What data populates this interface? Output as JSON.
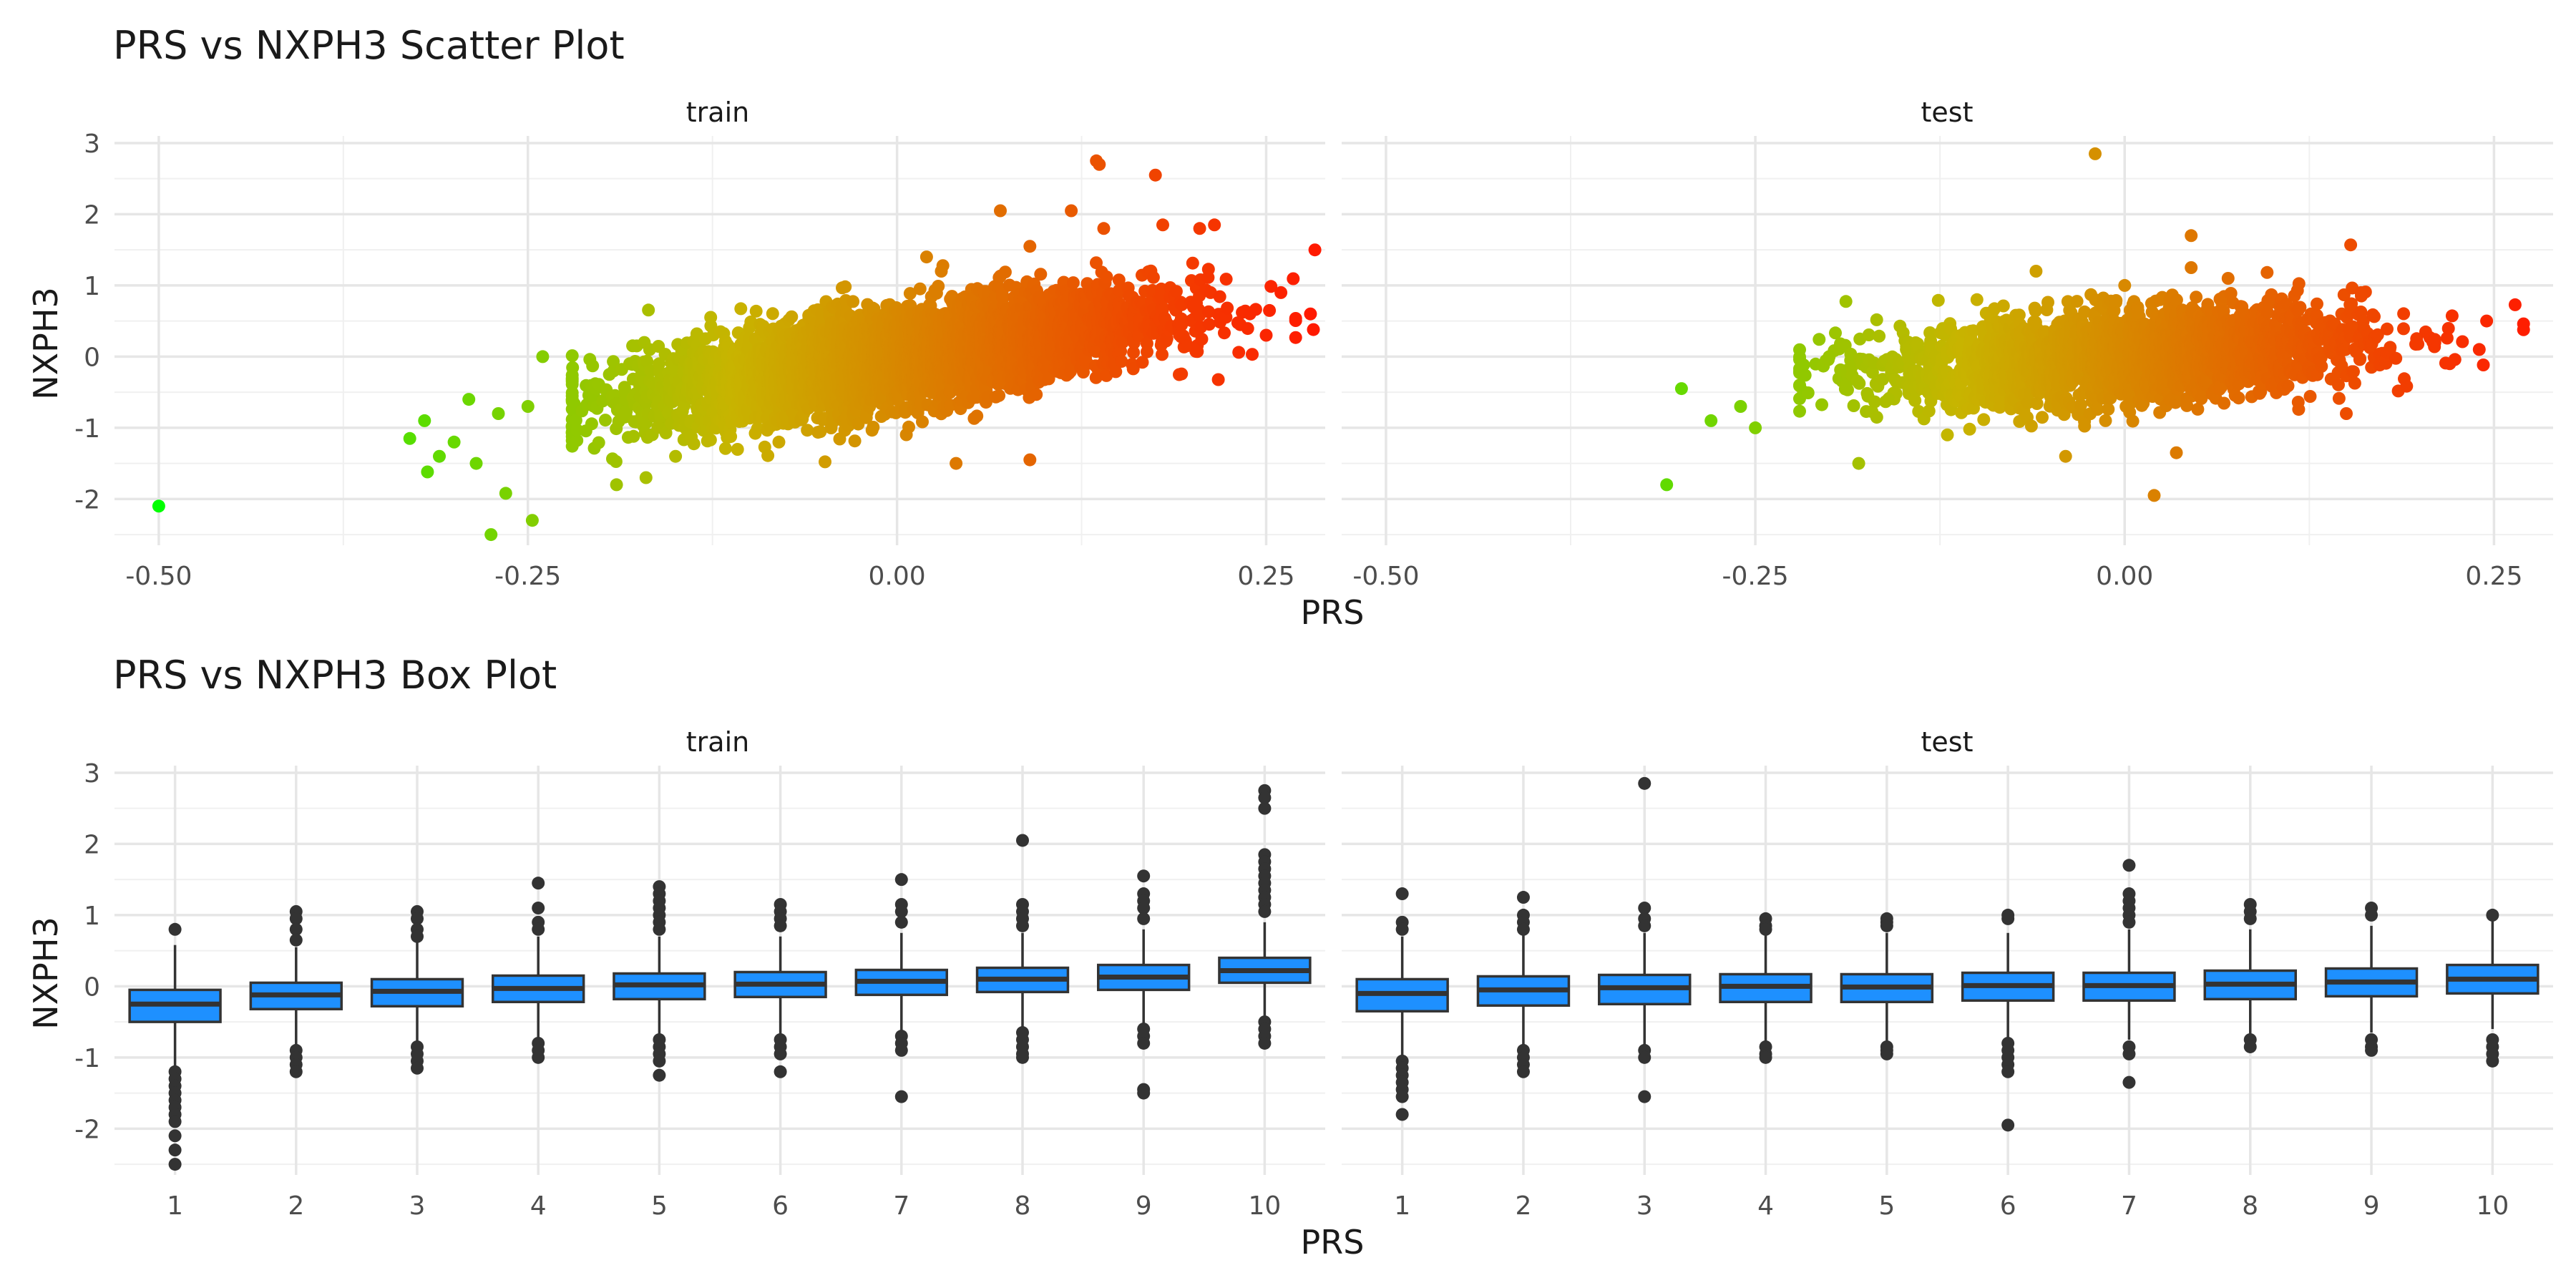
{
  "chart_data": [
    {
      "type": "scatter",
      "title": "PRS vs NXPH3 Scatter Plot",
      "xlabel": "PRS",
      "ylabel": "NXPH3",
      "xlim": [
        -0.53,
        0.29
      ],
      "ylim": [
        -2.65,
        3.1
      ],
      "xticks": [
        -0.5,
        -0.25,
        0,
        0.25
      ],
      "xtick_labels": [
        "-0.50",
        "-0.25",
        "0.00",
        "0.25"
      ],
      "yticks": [
        -2,
        -1,
        0,
        1,
        2,
        3
      ],
      "ytick_labels": [
        "-2",
        "-1",
        "0",
        "1",
        "2",
        "3"
      ],
      "grid": true,
      "legend": "none",
      "color_gradient": {
        "low": "#00ff00",
        "mid": "#c8b400",
        "high": "#ff1a00"
      },
      "facets": [
        {
          "name": "train",
          "trend": {
            "slope": 3.1,
            "intercept": 0.0,
            "sd": 0.33,
            "x_mean": 0.0,
            "x_sd": 0.085,
            "n": 4500
          },
          "points": [
            {
              "x": -0.5,
              "y": -2.1
            },
            {
              "x": -0.275,
              "y": -2.5
            },
            {
              "x": -0.265,
              "y": -1.92
            },
            {
              "x": -0.247,
              "y": -2.3
            },
            {
              "x": -0.33,
              "y": -1.15
            },
            {
              "x": -0.32,
              "y": -0.9
            },
            {
              "x": -0.318,
              "y": -1.62
            },
            {
              "x": -0.31,
              "y": -1.4
            },
            {
              "x": -0.3,
              "y": -1.2
            },
            {
              "x": -0.29,
              "y": -0.6
            },
            {
              "x": -0.285,
              "y": -1.5
            },
            {
              "x": -0.27,
              "y": -0.8
            },
            {
              "x": -0.25,
              "y": -0.7
            },
            {
              "x": -0.24,
              "y": 0.0
            },
            {
              "x": -0.19,
              "y": -1.8
            },
            {
              "x": -0.17,
              "y": -1.7
            },
            {
              "x": -0.15,
              "y": -1.4
            },
            {
              "x": -0.08,
              "y": -1.2
            },
            {
              "x": 0.02,
              "y": 1.4
            },
            {
              "x": 0.03,
              "y": 1.2
            },
            {
              "x": 0.04,
              "y": -1.5
            },
            {
              "x": 0.07,
              "y": 2.05
            },
            {
              "x": 0.09,
              "y": 1.55
            },
            {
              "x": 0.09,
              "y": -1.45
            },
            {
              "x": 0.118,
              "y": 2.05
            },
            {
              "x": 0.135,
              "y": 2.75
            },
            {
              "x": 0.137,
              "y": 2.7
            },
            {
              "x": 0.14,
              "y": 1.8
            },
            {
              "x": 0.175,
              "y": 2.55
            },
            {
              "x": 0.18,
              "y": 1.85
            },
            {
              "x": 0.205,
              "y": 1.8
            },
            {
              "x": 0.215,
              "y": 1.85
            },
            {
              "x": 0.283,
              "y": 1.5
            },
            {
              "x": 0.28,
              "y": 0.6
            },
            {
              "x": 0.282,
              "y": 0.38
            },
            {
              "x": 0.26,
              "y": 0.9
            },
            {
              "x": 0.25,
              "y": 0.3
            }
          ]
        },
        {
          "name": "test",
          "trend": {
            "slope": 1.3,
            "intercept": 0.0,
            "sd": 0.32,
            "x_mean": 0.0,
            "x_sd": 0.08,
            "n": 2500
          },
          "points": [
            {
              "x": -0.31,
              "y": -1.8
            },
            {
              "x": -0.3,
              "y": -0.45
            },
            {
              "x": -0.28,
              "y": -0.9
            },
            {
              "x": -0.26,
              "y": -0.7
            },
            {
              "x": -0.25,
              "y": -1.0
            },
            {
              "x": -0.22,
              "y": -0.4
            },
            {
              "x": -0.2,
              "y": 0.0
            },
            {
              "x": -0.18,
              "y": -1.5
            },
            {
              "x": -0.16,
              "y": -0.6
            },
            {
              "x": -0.12,
              "y": -1.1
            },
            {
              "x": -0.1,
              "y": 0.8
            },
            {
              "x": -0.06,
              "y": 1.2
            },
            {
              "x": -0.04,
              "y": -1.4
            },
            {
              "x": -0.02,
              "y": 2.85
            },
            {
              "x": 0.0,
              "y": 1.0
            },
            {
              "x": 0.02,
              "y": -1.95
            },
            {
              "x": 0.035,
              "y": -1.35
            },
            {
              "x": 0.045,
              "y": 1.7
            },
            {
              "x": 0.045,
              "y": 1.25
            },
            {
              "x": 0.07,
              "y": 1.1
            },
            {
              "x": 0.15,
              "y": -0.8
            },
            {
              "x": 0.16,
              "y": 0.9
            },
            {
              "x": 0.21,
              "y": 0.2
            },
            {
              "x": 0.22,
              "y": -0.1
            },
            {
              "x": 0.245,
              "y": 0.5
            },
            {
              "x": 0.24,
              "y": 0.1
            }
          ]
        }
      ]
    },
    {
      "type": "box",
      "title": "PRS vs NXPH3 Box Plot",
      "xlabel": "PRS",
      "ylabel": "NXPH3",
      "categories": [
        "1",
        "2",
        "3",
        "4",
        "5",
        "6",
        "7",
        "8",
        "9",
        "10"
      ],
      "ylim": [
        -2.65,
        3.1
      ],
      "yticks": [
        -2,
        -1,
        0,
        1,
        2,
        3
      ],
      "ytick_labels": [
        "-2",
        "-1",
        "0",
        "1",
        "2",
        "3"
      ],
      "grid": true,
      "legend": "none",
      "box_fill": "#1e90ff",
      "facets": [
        {
          "name": "train",
          "boxes": [
            {
              "q1": -0.5,
              "median": -0.25,
              "q3": -0.05,
              "whisker_low": -1.15,
              "whisker_high": 0.58,
              "outliers": [
                0.8,
                -1.2,
                -1.3,
                -1.4,
                -1.5,
                -1.6,
                -1.7,
                -1.8,
                -1.9,
                -2.1,
                -2.3,
                -2.5
              ]
            },
            {
              "q1": -0.32,
              "median": -0.12,
              "q3": 0.05,
              "whisker_low": -0.85,
              "whisker_high": 0.55,
              "outliers": [
                1.05,
                0.95,
                0.8,
                0.65,
                -0.9,
                -1.0,
                -1.1,
                -1.2
              ]
            },
            {
              "q1": -0.28,
              "median": -0.07,
              "q3": 0.1,
              "whisker_low": -0.85,
              "whisker_high": 0.65,
              "outliers": [
                1.05,
                0.95,
                0.8,
                0.7,
                -0.85,
                -0.95,
                -1.05,
                -1.15
              ]
            },
            {
              "q1": -0.22,
              "median": -0.03,
              "q3": 0.15,
              "whisker_low": -0.75,
              "whisker_high": 0.7,
              "outliers": [
                1.45,
                1.1,
                0.9,
                0.8,
                -0.8,
                -0.9,
                -1.0
              ]
            },
            {
              "q1": -0.18,
              "median": 0.02,
              "q3": 0.18,
              "whisker_low": -0.7,
              "whisker_high": 0.7,
              "outliers": [
                1.4,
                1.3,
                1.2,
                1.1,
                1.0,
                0.9,
                0.8,
                -0.75,
                -0.85,
                -0.95,
                -1.05,
                -1.25
              ]
            },
            {
              "q1": -0.15,
              "median": 0.03,
              "q3": 0.2,
              "whisker_low": -0.7,
              "whisker_high": 0.7,
              "outliers": [
                1.15,
                1.05,
                0.95,
                0.85,
                -0.75,
                -0.85,
                -0.95,
                -1.2
              ]
            },
            {
              "q1": -0.12,
              "median": 0.07,
              "q3": 0.23,
              "whisker_low": -0.65,
              "whisker_high": 0.75,
              "outliers": [
                1.5,
                1.15,
                1.05,
                0.9,
                -0.7,
                -0.8,
                -0.9,
                -1.55
              ]
            },
            {
              "q1": -0.08,
              "median": 0.1,
              "q3": 0.26,
              "whisker_low": -0.6,
              "whisker_high": 0.75,
              "outliers": [
                2.05,
                1.15,
                1.05,
                0.95,
                0.85,
                -0.65,
                -0.75,
                -0.85,
                -0.95,
                -1.0
              ]
            },
            {
              "q1": -0.05,
              "median": 0.13,
              "q3": 0.3,
              "whisker_low": -0.55,
              "whisker_high": 0.8,
              "outliers": [
                1.55,
                1.3,
                1.2,
                1.1,
                0.95,
                -0.6,
                -0.7,
                -0.8,
                -1.45,
                -1.5
              ]
            },
            {
              "q1": 0.05,
              "median": 0.22,
              "q3": 0.4,
              "whisker_low": -0.45,
              "whisker_high": 0.9,
              "outliers": [
                2.75,
                2.65,
                2.5,
                1.85,
                1.75,
                1.65,
                1.55,
                1.45,
                1.35,
                1.25,
                1.15,
                1.05,
                -0.5,
                -0.6,
                -0.7,
                -0.8
              ]
            }
          ]
        },
        {
          "name": "test",
          "boxes": [
            {
              "q1": -0.35,
              "median": -0.1,
              "q3": 0.1,
              "whisker_low": -1.0,
              "whisker_high": 0.7,
              "outliers": [
                1.3,
                0.9,
                0.8,
                -1.05,
                -1.15,
                -1.25,
                -1.35,
                -1.45,
                -1.55,
                -1.8
              ]
            },
            {
              "q1": -0.27,
              "median": -0.05,
              "q3": 0.14,
              "whisker_low": -0.85,
              "whisker_high": 0.75,
              "outliers": [
                1.25,
                1.0,
                0.9,
                0.8,
                -0.9,
                -1.0,
                -1.1,
                -1.2
              ]
            },
            {
              "q1": -0.25,
              "median": -0.02,
              "q3": 0.16,
              "whisker_low": -0.85,
              "whisker_high": 0.75,
              "outliers": [
                2.85,
                1.1,
                0.95,
                0.85,
                -0.9,
                -1.0,
                -1.55
              ]
            },
            {
              "q1": -0.22,
              "median": 0.0,
              "q3": 0.17,
              "whisker_low": -0.8,
              "whisker_high": 0.75,
              "outliers": [
                0.95,
                0.85,
                0.8,
                -0.85,
                -0.95,
                -1.0
              ]
            },
            {
              "q1": -0.22,
              "median": -0.01,
              "q3": 0.17,
              "whisker_low": -0.8,
              "whisker_high": 0.75,
              "outliers": [
                0.95,
                0.9,
                0.85,
                -0.85,
                -0.9,
                -0.95
              ]
            },
            {
              "q1": -0.2,
              "median": 0.01,
              "q3": 0.19,
              "whisker_low": -0.75,
              "whisker_high": 0.75,
              "outliers": [
                1.0,
                0.95,
                -0.8,
                -0.9,
                -1.0,
                -1.1,
                -1.2,
                -1.95
              ]
            },
            {
              "q1": -0.2,
              "median": 0.01,
              "q3": 0.19,
              "whisker_low": -0.75,
              "whisker_high": 0.8,
              "outliers": [
                1.7,
                1.3,
                1.2,
                1.1,
                1.0,
                0.9,
                -0.85,
                -0.95,
                -1.35
              ]
            },
            {
              "q1": -0.18,
              "median": 0.03,
              "q3": 0.22,
              "whisker_low": -0.7,
              "whisker_high": 0.8,
              "outliers": [
                1.15,
                1.05,
                0.95,
                -0.75,
                -0.85
              ]
            },
            {
              "q1": -0.14,
              "median": 0.06,
              "q3": 0.25,
              "whisker_low": -0.65,
              "whisker_high": 0.85,
              "outliers": [
                1.1,
                1.0,
                -0.75,
                -0.85,
                -0.9
              ]
            },
            {
              "q1": -0.1,
              "median": 0.1,
              "q3": 0.3,
              "whisker_low": -0.6,
              "whisker_high": 0.95,
              "outliers": [
                1.0,
                -0.75,
                -0.85,
                -0.95,
                -1.05
              ]
            }
          ]
        }
      ]
    }
  ]
}
